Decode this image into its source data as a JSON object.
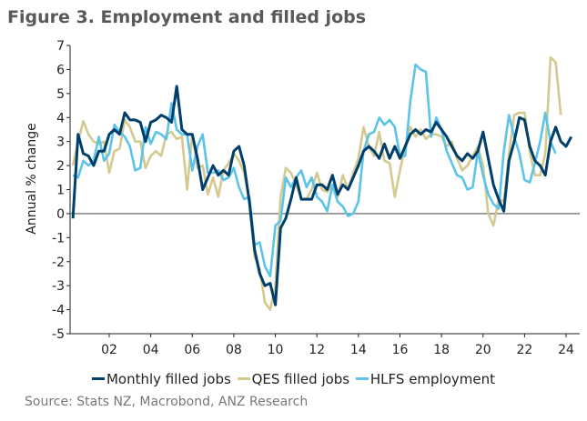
{
  "chart_data": {
    "type": "line",
    "title": "Figure 3. Employment and filled jobs",
    "xlabel": "",
    "ylabel": "Annual % change",
    "ylim": [
      -5,
      7
    ],
    "yticks": [
      "7",
      "6",
      "5",
      "4",
      "3",
      "2",
      "1",
      "0",
      "-1",
      "-2",
      "-3",
      "-4",
      "-5"
    ],
    "xlim": [
      2000.1,
      2024.6
    ],
    "xticks": [
      {
        "year": 2002,
        "label": "02"
      },
      {
        "year": 2004,
        "label": "04"
      },
      {
        "year": 2006,
        "label": "06"
      },
      {
        "year": 2008,
        "label": "08"
      },
      {
        "year": 2010,
        "label": "10"
      },
      {
        "year": 2012,
        "label": "12"
      },
      {
        "year": 2014,
        "label": "14"
      },
      {
        "year": 2016,
        "label": "16"
      },
      {
        "year": 2018,
        "label": "18"
      },
      {
        "year": 2020,
        "label": "20"
      },
      {
        "year": 2022,
        "label": "22"
      },
      {
        "year": 2024,
        "label": "24"
      }
    ],
    "grid": false,
    "legend_position": "bottom",
    "source": "Source: Stats NZ, Macrobond, ANZ Research",
    "series": [
      {
        "name": "Monthly filled jobs",
        "color": "#003f6b",
        "start": 2000.25,
        "step": 0.25,
        "values": [
          -0.2,
          3.3,
          2.5,
          2.4,
          2.0,
          2.6,
          2.6,
          3.3,
          3.5,
          3.3,
          4.2,
          3.9,
          3.9,
          3.8,
          3.0,
          3.8,
          3.9,
          4.1,
          4.0,
          3.8,
          5.3,
          3.5,
          3.3,
          3.3,
          2.3,
          1.0,
          1.5,
          2.0,
          1.6,
          1.8,
          1.6,
          2.6,
          2.8,
          2.0,
          0.5,
          -1.5,
          -2.5,
          -3.0,
          -2.9,
          -3.8,
          -0.6,
          -0.2,
          0.6,
          1.5,
          0.6,
          0.6,
          0.6,
          1.2,
          1.2,
          1.0,
          1.6,
          0.8,
          1.2,
          1.0,
          1.5,
          2.0,
          2.6,
          2.8,
          2.6,
          2.3,
          2.9,
          2.3,
          2.8,
          2.3,
          2.8,
          3.3,
          3.5,
          3.3,
          3.5,
          3.4,
          3.8,
          3.5,
          3.2,
          2.8,
          2.4,
          2.2,
          2.5,
          2.3,
          2.6,
          3.4,
          2.3,
          1.2,
          0.6,
          0.1,
          2.2,
          3.0,
          4.0,
          3.9,
          2.8,
          2.2,
          2.0,
          1.6,
          3.0,
          3.6,
          3.0,
          2.8,
          3.2
        ]
      },
      {
        "name": "QES filled jobs",
        "color": "#d4c98f",
        "start": 2000.25,
        "step": 0.25,
        "values": [
          2.0,
          3.0,
          3.85,
          3.3,
          3.0,
          2.9,
          3.0,
          1.7,
          2.6,
          2.7,
          3.9,
          3.6,
          3.0,
          3.0,
          1.9,
          2.4,
          2.6,
          2.4,
          3.3,
          3.4,
          3.1,
          3.2,
          1.0,
          3.3,
          1.9,
          2.0,
          0.8,
          1.5,
          0.7,
          1.8,
          2.1,
          2.5,
          2.2,
          1.7,
          0.5,
          -1.8,
          -2.3,
          -3.7,
          -4.0,
          -3.0,
          0.7,
          1.9,
          1.7,
          1.2,
          0.6,
          0.6,
          1.0,
          1.7,
          1.0,
          0.9,
          1.2,
          0.7,
          1.6,
          1.0,
          1.7,
          2.3,
          3.6,
          2.8,
          2.4,
          3.4,
          2.2,
          2.1,
          0.7,
          1.8,
          2.8,
          3.6,
          3.2,
          3.5,
          3.1,
          3.3,
          3.3,
          3.2,
          2.8,
          3.0,
          2.3,
          1.8,
          2.0,
          2.4,
          2.8,
          2.0,
          0.0,
          -0.5,
          0.6,
          0.5,
          2.5,
          4.1,
          4.2,
          4.2,
          2.6,
          1.6,
          1.6,
          2.5,
          6.5,
          6.3,
          4.1
        ]
      },
      {
        "name": "HLFS employment",
        "color": "#5bc4e8",
        "start": 2000.25,
        "step": 0.25,
        "values": [
          1.6,
          1.5,
          2.2,
          2.0,
          2.2,
          3.2,
          2.2,
          2.5,
          3.7,
          3.4,
          3.2,
          2.8,
          1.8,
          1.9,
          3.6,
          2.9,
          3.4,
          3.3,
          3.1,
          4.6,
          3.5,
          3.3,
          3.3,
          1.8,
          2.8,
          3.3,
          1.7,
          1.7,
          1.8,
          1.4,
          1.5,
          1.9,
          1.1,
          0.6,
          0.7,
          -1.3,
          -1.2,
          -2.2,
          -2.6,
          -0.5,
          -0.3,
          1.5,
          1.1,
          1.5,
          1.8,
          1.1,
          1.5,
          0.7,
          0.5,
          0.1,
          1.2,
          0.5,
          0.3,
          -0.1,
          0.0,
          0.5,
          2.6,
          3.3,
          3.4,
          4.0,
          3.7,
          3.9,
          3.6,
          2.4,
          2.4,
          4.7,
          6.2,
          6.0,
          5.9,
          3.2,
          4.0,
          3.5,
          2.6,
          2.1,
          1.6,
          1.5,
          1.0,
          1.1,
          2.6,
          1.6,
          0.8,
          0.4,
          0.2,
          2.6,
          4.1,
          3.2,
          2.5,
          1.4,
          1.3,
          2.1,
          3.0,
          4.2,
          3.0,
          2.5
        ]
      }
    ]
  }
}
